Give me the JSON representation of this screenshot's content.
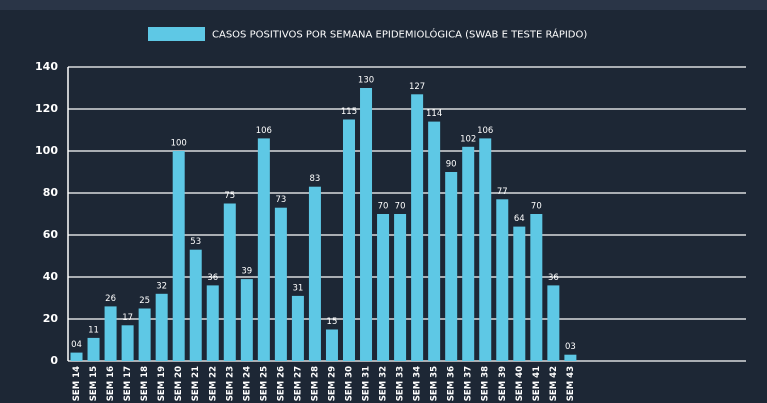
{
  "chart_data": {
    "type": "bar",
    "legend": "CASOS POSITIVOS POR SEMANA EPIDEMIOLÓGICA (SWAB E TESTE RÁPIDO)",
    "categories": [
      "SEM 14",
      "SEM 15",
      "SEM 16",
      "SEM 17",
      "SEM 18",
      "SEM 19",
      "SEM 20",
      "SEM 21",
      "SEM 22",
      "SEM 23",
      "SEM 24",
      "SEM 25",
      "SEM 26",
      "SEM 27",
      "SEM 28",
      "SEM 29",
      "SEM 30",
      "SEM 31",
      "SEM 32",
      "SEM 33",
      "SEM 34",
      "SEM 35",
      "SEM 36",
      "SEM 37",
      "SEM 38",
      "SEM 39",
      "SEM 40",
      "SEM 41",
      "SEM 42",
      "SEM 43"
    ],
    "values": [
      4,
      11,
      26,
      17,
      25,
      32,
      100,
      53,
      36,
      75,
      39,
      106,
      73,
      31,
      83,
      15,
      115,
      130,
      70,
      70,
      127,
      114,
      90,
      102,
      106,
      77,
      64,
      70,
      36,
      3
    ],
    "value_labels": [
      "04",
      "11",
      "26",
      "17",
      "25",
      "32",
      "100",
      "53",
      "36",
      "75",
      "39",
      "106",
      "73",
      "31",
      "83",
      "15",
      "115",
      "130",
      "70",
      "70",
      "127",
      "114",
      "90",
      "102",
      "106",
      "77",
      "64",
      "70",
      "36",
      "03"
    ],
    "color": "#5ec8e5",
    "ylim": [
      0,
      140
    ],
    "yticks": [
      0,
      20,
      40,
      60,
      80,
      100,
      120,
      140
    ],
    "grid": true
  }
}
